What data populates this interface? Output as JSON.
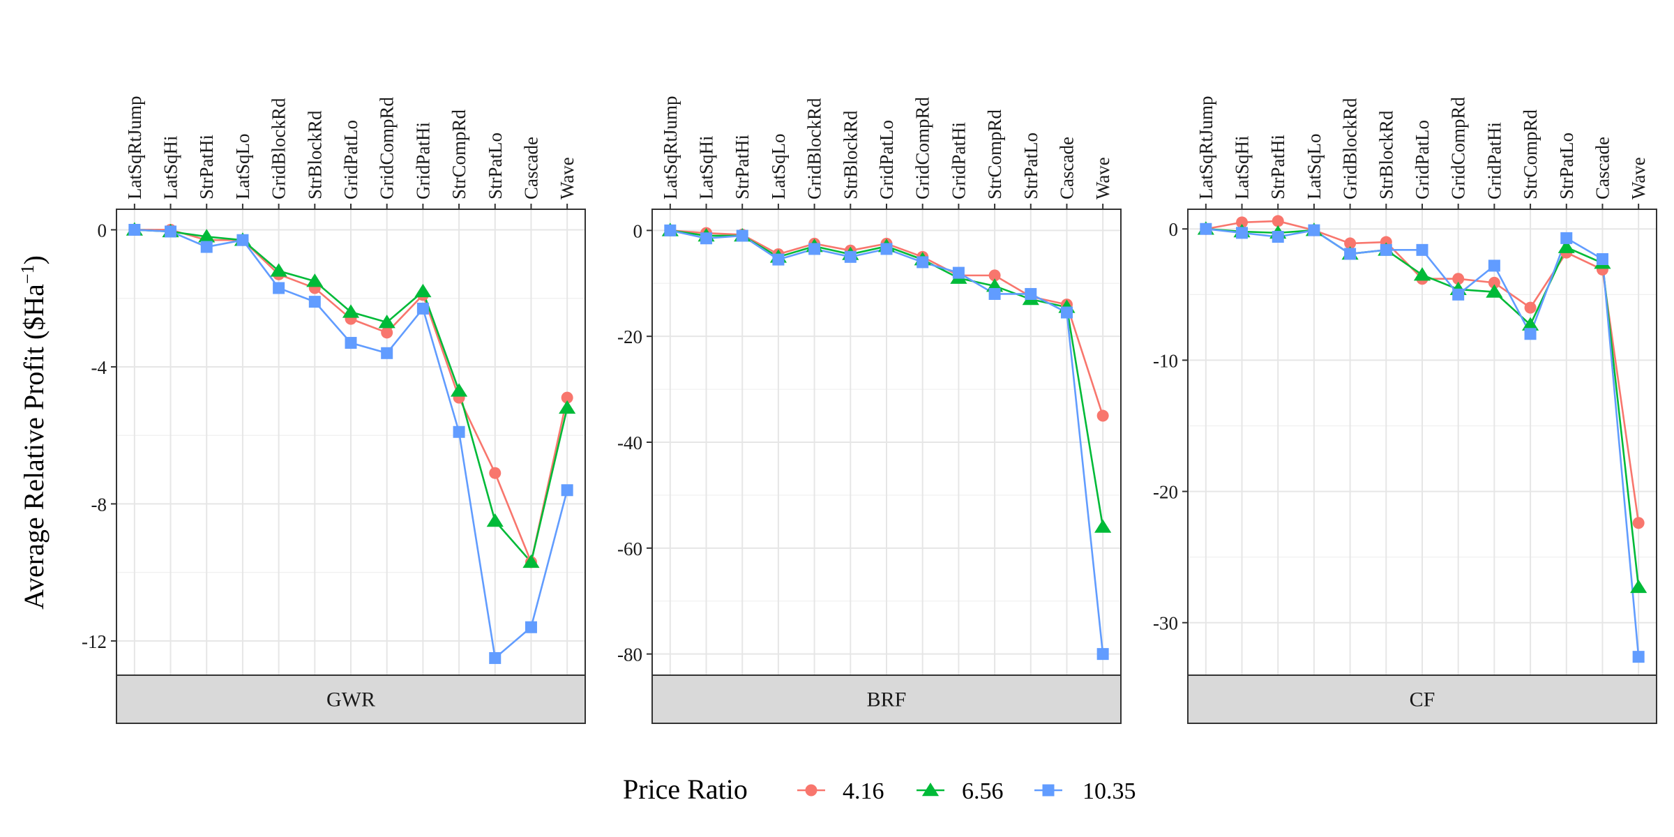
{
  "chart_data": {
    "type": "line",
    "ylabel_main": "Average Relative Profit ($Ha",
    "ylabel_sup": "−1",
    "ylabel_close": ")",
    "categories": [
      "LatSqRtJump",
      "LatSqHi",
      "StrPatHi",
      "LatSqLo",
      "GridBlockRd",
      "StrBlockRd",
      "GridPatLo",
      "GridCompRd",
      "GridPatHi",
      "StrCompRd",
      "StrPatLo",
      "Cascade",
      "Wave"
    ],
    "legend": {
      "title": "Price Ratio",
      "placement": "bottom",
      "entries": [
        {
          "label": "4.16",
          "color": "#F8766D",
          "shape": "circle"
        },
        {
          "label": "6.56",
          "color": "#00BA38",
          "shape": "triangle"
        },
        {
          "label": "10.35",
          "color": "#619CFF",
          "shape": "square"
        }
      ]
    },
    "panels": [
      {
        "strip": "GWR",
        "ylim": [
          -13.0,
          0.6
        ],
        "yticks": [
          0,
          -4,
          -8,
          -12
        ],
        "ytick_labels": [
          "0",
          "-4",
          "-8",
          "-12"
        ],
        "series": [
          {
            "legend_label": "4.16",
            "values": [
              0,
              0,
              -0.3,
              -0.3,
              -1.3,
              -1.7,
              -2.6,
              -3.0,
              -1.9,
              -4.9,
              -7.1,
              -9.7,
              -4.9
            ]
          },
          {
            "legend_label": "6.56",
            "values": [
              0,
              -0.05,
              -0.2,
              -0.3,
              -1.2,
              -1.5,
              -2.4,
              -2.7,
              -1.8,
              -4.7,
              -8.5,
              -9.7,
              -5.2
            ]
          },
          {
            "legend_label": "10.35",
            "values": [
              0,
              -0.05,
              -0.5,
              -0.3,
              -1.7,
              -2.1,
              -3.3,
              -3.6,
              -2.3,
              -5.9,
              -12.5,
              -11.6,
              -7.6
            ]
          }
        ]
      },
      {
        "strip": "BRF",
        "ylim": [
          -84,
          4
        ],
        "yticks": [
          0,
          -20,
          -40,
          -60,
          -80
        ],
        "ytick_labels": [
          "0",
          "-20",
          "-40",
          "-60",
          "-80"
        ],
        "series": [
          {
            "legend_label": "4.16",
            "values": [
              0,
              -0.5,
              -0.8,
              -4.5,
              -2.5,
              -3.8,
              -2.5,
              -5.0,
              -8.5,
              -8.5,
              -12.5,
              -14.0,
              -35.0
            ]
          },
          {
            "legend_label": "6.56",
            "values": [
              0,
              -1.0,
              -1.0,
              -5.0,
              -3.0,
              -4.5,
              -3.0,
              -5.5,
              -9.0,
              -10.5,
              -13.0,
              -14.5,
              -56.0
            ]
          },
          {
            "legend_label": "10.35",
            "values": [
              0,
              -1.5,
              -1.0,
              -5.5,
              -3.5,
              -5.0,
              -3.5,
              -6.0,
              -8.0,
              -12.0,
              -12.0,
              -15.5,
              -80.0
            ]
          }
        ]
      },
      {
        "strip": "CF",
        "ylim": [
          -34,
          1.5
        ],
        "yticks": [
          0,
          -10,
          -20,
          -30
        ],
        "ytick_labels": [
          "0",
          "-10",
          "-20",
          "-30"
        ],
        "series": [
          {
            "legend_label": "4.16",
            "values": [
              0,
              0.5,
              0.6,
              -0.1,
              -1.1,
              -1.0,
              -3.8,
              -3.8,
              -4.1,
              -6.0,
              -1.8,
              -3.1,
              -22.4
            ]
          },
          {
            "legend_label": "6.56",
            "values": [
              0,
              -0.2,
              -0.3,
              -0.1,
              -1.9,
              -1.6,
              -3.5,
              -4.6,
              -4.8,
              -7.3,
              -1.4,
              -2.6,
              -27.3
            ]
          },
          {
            "legend_label": "10.35",
            "values": [
              0,
              -0.3,
              -0.6,
              -0.1,
              -1.9,
              -1.6,
              -1.6,
              -5.0,
              -2.8,
              -8.0,
              -0.7,
              -2.3,
              -32.6
            ]
          }
        ]
      }
    ]
  }
}
